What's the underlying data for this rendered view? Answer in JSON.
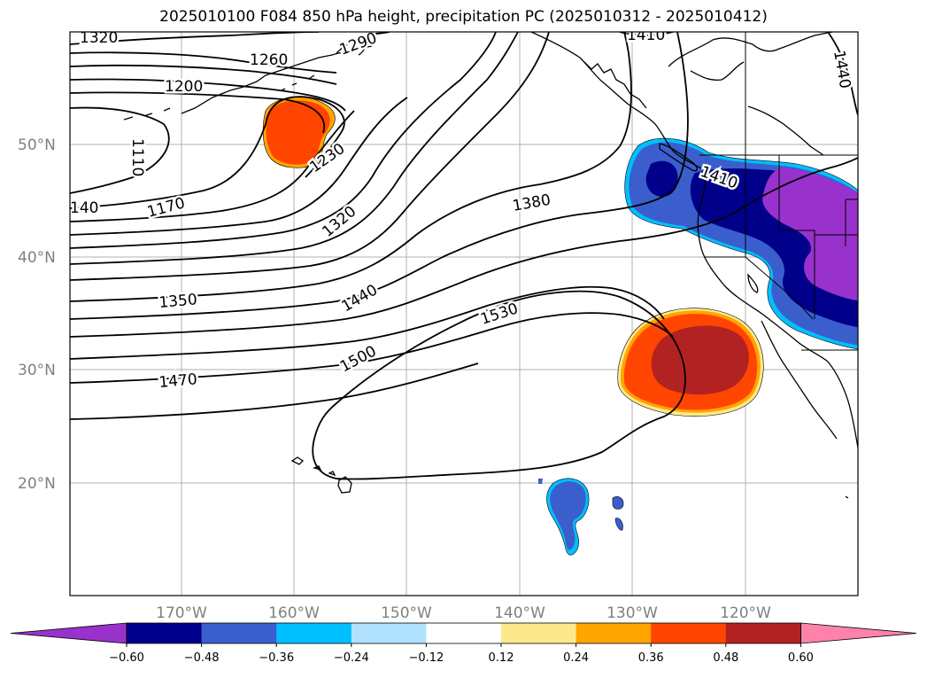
{
  "title": "2025010100 F084 850 hPa height, precipitation PC (2025010312 - 2025010412)",
  "lat_labels": [
    "50°N",
    "40°N",
    "30°N",
    "20°N"
  ],
  "lon_labels": [
    "170°W",
    "160°W",
    "150°W",
    "140°W",
    "130°W",
    "120°W"
  ],
  "height_contour_labels": [
    "1320",
    "1260",
    "1200",
    "1110",
    "140",
    "1170",
    "1230",
    "1320",
    "1350",
    "1440",
    "1380",
    "1410",
    "1470",
    "1500",
    "1530",
    "1410",
    "1440",
    "1290"
  ],
  "colorbar": {
    "tick_labels": [
      "−0.60",
      "−0.48",
      "−0.36",
      "−0.24",
      "−0.12",
      "0.12",
      "0.24",
      "0.36",
      "0.48",
      "0.60"
    ],
    "colors": [
      "#9932cc",
      "#00008b",
      "#3a5fcd",
      "#00bfff",
      "#b0e2ff",
      "#ffffff",
      "#fce98c",
      "#ffa500",
      "#ff4500",
      "#b22222",
      "#ff82ab"
    ]
  }
}
